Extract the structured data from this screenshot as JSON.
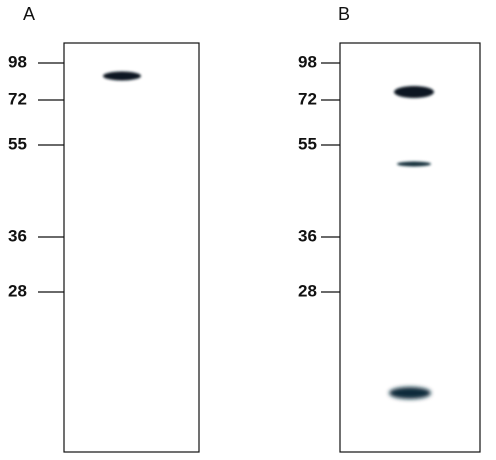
{
  "panels": [
    {
      "label": "A",
      "markers": [
        "98",
        "72",
        "55",
        "36",
        "28"
      ]
    },
    {
      "label": "B",
      "markers": [
        "98",
        "72",
        "55",
        "36",
        "28"
      ]
    }
  ]
}
